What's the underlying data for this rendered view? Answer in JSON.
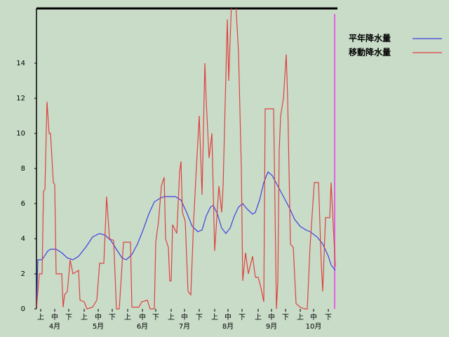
{
  "chart_data": {
    "type": "line",
    "xlim": [
      0,
      213
    ],
    "ylim": [
      0,
      17.12
    ],
    "yticks": [
      0,
      2,
      4,
      6,
      8,
      10,
      12,
      14
    ],
    "xticks": [
      {
        "value": 3,
        "label": "上"
      },
      {
        "value": 13,
        "label": "中"
      },
      {
        "value": 23,
        "label": "下"
      },
      {
        "value": 34,
        "label": "上"
      },
      {
        "value": 44,
        "label": "中"
      },
      {
        "value": 54,
        "label": "下"
      },
      {
        "value": 65,
        "label": "上"
      },
      {
        "value": 75.5,
        "label": "中"
      },
      {
        "value": 85,
        "label": "下"
      },
      {
        "value": 96,
        "label": "上"
      },
      {
        "value": 105.5,
        "label": "中"
      },
      {
        "value": 116,
        "label": "下"
      },
      {
        "value": 127,
        "label": "上"
      },
      {
        "value": 136.5,
        "label": "中"
      },
      {
        "value": 146.5,
        "label": "下"
      },
      {
        "value": 158,
        "label": "上"
      },
      {
        "value": 167.5,
        "label": "中"
      },
      {
        "value": 177.5,
        "label": "下"
      },
      {
        "value": 188,
        "label": "上"
      },
      {
        "value": 197.5,
        "label": "中"
      },
      {
        "value": 208,
        "label": "下"
      }
    ],
    "month_labels": [
      "4月",
      "5月",
      "6月",
      "7月",
      "8月",
      "9月",
      "10月"
    ],
    "series": [
      {
        "name": "平年降水量",
        "color": "#4040e0",
        "x": [
          0,
          1,
          4,
          8,
          10,
          14,
          18,
          22,
          26,
          30,
          35,
          40,
          45,
          49,
          53,
          57,
          61,
          64,
          68,
          72,
          76,
          80,
          84,
          88,
          91,
          99,
          103,
          107,
          111,
          115,
          118,
          121,
          124,
          126,
          129,
          132,
          135,
          138,
          141,
          144,
          147,
          150,
          154,
          156,
          159,
          162,
          165,
          168,
          172,
          176,
          180,
          184,
          188,
          192,
          195,
          200,
          204,
          208,
          210,
          213
        ],
        "values": [
          0,
          2.8,
          2.8,
          3.3,
          3.4,
          3.4,
          3.2,
          2.9,
          2.8,
          3.0,
          3.5,
          4.1,
          4.3,
          4.2,
          3.9,
          3.4,
          2.9,
          2.8,
          3.1,
          3.7,
          4.5,
          5.4,
          6.1,
          6.3,
          6.4,
          6.4,
          6.2,
          5.5,
          4.7,
          4.4,
          4.5,
          5.3,
          5.8,
          5.9,
          5.4,
          4.6,
          4.3,
          4.6,
          5.3,
          5.8,
          6.0,
          5.7,
          5.4,
          5.5,
          6.2,
          7.2,
          7.8,
          7.6,
          7.0,
          6.4,
          5.8,
          5.1,
          4.7,
          4.5,
          4.4,
          4.1,
          3.7,
          3.0,
          2.5,
          2.2
        ]
      },
      {
        "name": "移動降水量",
        "color": "#e04040",
        "x": [
          0,
          2,
          4,
          5,
          6,
          7.5,
          9,
          10,
          12,
          13,
          14,
          18,
          19,
          20,
          22,
          24,
          26,
          30,
          31,
          34,
          36,
          40,
          43,
          45,
          48,
          50,
          52,
          55,
          57,
          59,
          62,
          67,
          68,
          73,
          75,
          79,
          81,
          84,
          85,
          87,
          89,
          91,
          92,
          94,
          95,
          96,
          97,
          100,
          102,
          103,
          104,
          106,
          108,
          110,
          112,
          114,
          116,
          118,
          120,
          121,
          123,
          125,
          127,
          130,
          132,
          133,
          136,
          137,
          139,
          142,
          144,
          146,
          147,
          149,
          151,
          154,
          156,
          158,
          160,
          162,
          163,
          169,
          171,
          172,
          173,
          174,
          176,
          178,
          179,
          181,
          183,
          185,
          188,
          191,
          193,
          195,
          197,
          198,
          201,
          203,
          204,
          206,
          209,
          210,
          213
        ],
        "values": [
          0,
          2,
          2,
          6.7,
          6.8,
          11.8,
          10,
          10,
          7.2,
          7.1,
          2,
          2,
          0.1,
          0.8,
          1,
          2.8,
          2,
          2.2,
          0.5,
          0.4,
          0,
          0.1,
          0.5,
          2.6,
          2.6,
          6.4,
          4,
          3.9,
          0,
          0,
          3.8,
          3.8,
          0.1,
          0.1,
          0.4,
          0.5,
          0,
          0,
          3.8,
          5,
          7,
          7.5,
          4,
          3.5,
          1.6,
          1.6,
          4.8,
          4.3,
          7.8,
          8.4,
          5.5,
          5,
          1,
          0.8,
          5,
          8.1,
          11,
          6.5,
          14,
          11.8,
          8.6,
          10,
          3.3,
          7,
          5.5,
          7,
          16.5,
          13,
          17.5,
          17.5,
          14.6,
          8,
          1.6,
          3.2,
          2,
          3,
          1.8,
          1.8,
          1.2,
          0.4,
          11.4,
          11.4,
          0,
          1.5,
          9,
          11,
          12,
          14.5,
          12,
          3.7,
          3.5,
          0.3,
          0.1,
          0,
          0,
          3.6,
          6,
          7.2,
          7.2,
          2.5,
          1,
          5.2,
          5.2,
          7.2,
          2.4
        ]
      }
    ]
  }
}
